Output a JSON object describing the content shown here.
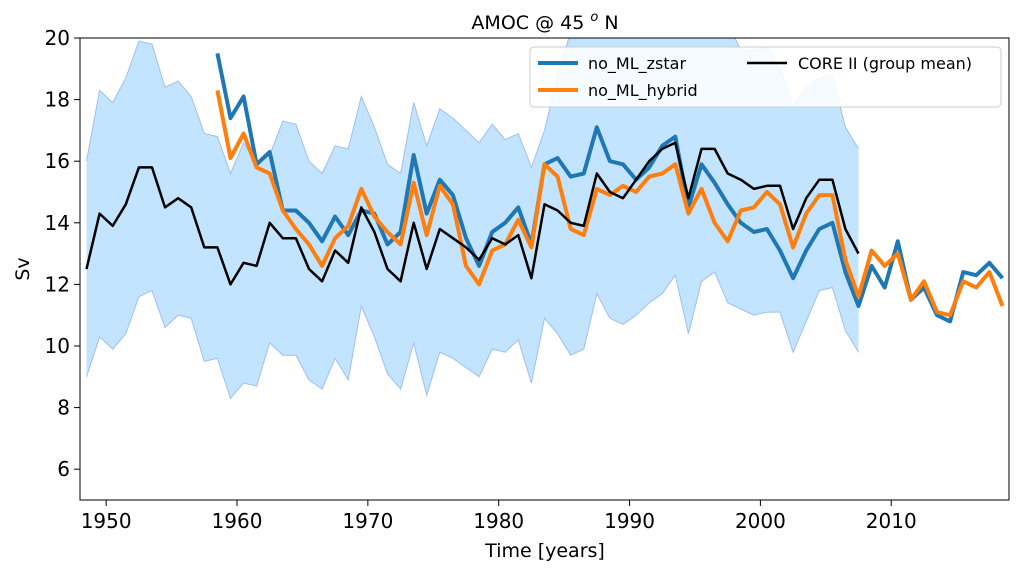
{
  "chart_data": {
    "type": "line",
    "title": "AMOC @ 45 ",
    "title_sup": "o",
    "title_suffix": " N",
    "xlabel": "Time [years]",
    "ylabel": "Sv",
    "xlim": [
      1948,
      2019
    ],
    "ylim": [
      5,
      20
    ],
    "xticks": [
      1950,
      1960,
      1970,
      1980,
      1990,
      2000,
      2010
    ],
    "yticks": [
      6,
      8,
      10,
      12,
      14,
      16,
      18,
      20
    ],
    "grid": false,
    "legend_position": "top-right",
    "band": {
      "color": "#c3e4ff",
      "edge_color": "#9fbfee",
      "x": [
        1948.5,
        1949.5,
        1950.5,
        1951.5,
        1952.5,
        1953.5,
        1954.5,
        1955.5,
        1956.5,
        1957.5,
        1958.5,
        1959.5,
        1960.5,
        1961.5,
        1962.5,
        1963.5,
        1964.5,
        1965.5,
        1966.5,
        1967.5,
        1968.5,
        1969.5,
        1970.5,
        1971.5,
        1972.5,
        1973.5,
        1974.5,
        1975.5,
        1976.5,
        1977.5,
        1978.5,
        1979.5,
        1980.5,
        1981.5,
        1982.5,
        1983.5,
        1984.5,
        1985.5,
        1986.5,
        1987.5,
        1988.5,
        1989.5,
        1990.5,
        1991.5,
        1992.5,
        1993.5,
        1994.5,
        1995.5,
        1996.5,
        1997.5,
        1998.5,
        1999.5,
        2000.5,
        2001.5,
        2002.5,
        2003.5,
        2004.5,
        2005.5,
        2006.5,
        2007.5
      ],
      "upper": [
        16.0,
        18.3,
        17.9,
        18.7,
        19.9,
        19.8,
        18.4,
        18.6,
        18.1,
        16.9,
        16.8,
        15.6,
        16.6,
        15.9,
        16.2,
        17.3,
        17.2,
        16.0,
        15.6,
        16.5,
        16.4,
        18.1,
        17.1,
        15.9,
        15.6,
        17.9,
        16.5,
        17.7,
        17.4,
        17.0,
        16.6,
        17.2,
        16.7,
        16.9,
        15.8,
        17.0,
        18.8,
        20.2,
        20.4,
        20.6,
        20.6,
        20.5,
        20.6,
        20.8,
        20.6,
        20.9,
        20.4,
        20.4,
        20.2,
        20.5,
        19.6,
        19.6,
        19.7,
        19.0,
        17.8,
        18.4,
        18.7,
        18.8,
        17.1,
        16.4
      ],
      "lower": [
        9.0,
        10.3,
        9.9,
        10.4,
        11.6,
        11.8,
        10.6,
        11.0,
        10.9,
        9.5,
        9.6,
        8.3,
        8.8,
        8.7,
        10.1,
        9.7,
        9.7,
        8.9,
        8.6,
        9.6,
        8.9,
        11.3,
        10.3,
        9.1,
        8.6,
        10.1,
        8.4,
        9.8,
        9.6,
        9.3,
        9.0,
        9.9,
        9.8,
        10.2,
        8.8,
        10.9,
        10.4,
        9.7,
        9.9,
        11.7,
        10.9,
        10.7,
        11.0,
        11.4,
        11.7,
        12.3,
        10.4,
        12.1,
        12.4,
        11.4,
        11.2,
        11.0,
        11.1,
        11.1,
        9.8,
        10.8,
        11.8,
        11.9,
        10.5,
        9.8
      ]
    },
    "series": [
      {
        "name": "no_ML_zstar",
        "color": "#1f77b4",
        "x_start": 1958.5,
        "values": [
          19.5,
          17.4,
          18.1,
          15.9,
          16.3,
          14.4,
          14.4,
          14.0,
          13.4,
          14.2,
          13.6,
          14.4,
          14.3,
          13.3,
          13.7,
          16.2,
          14.3,
          15.4,
          14.9,
          13.5,
          12.6,
          13.7,
          14.0,
          14.5,
          13.3,
          15.9,
          16.1,
          15.5,
          15.6,
          17.1,
          16.0,
          15.9,
          15.4,
          15.8,
          16.5,
          16.8,
          14.5,
          15.9,
          15.3,
          14.6,
          14.0,
          13.7,
          13.8,
          13.1,
          12.2,
          13.1,
          13.8,
          14.0,
          12.4,
          11.3,
          12.6,
          11.9,
          13.4,
          11.5,
          11.9,
          11.0,
          10.8,
          12.4,
          12.3,
          12.7,
          12.2
        ]
      },
      {
        "name": "no_ML_hybrid",
        "color": "#ff7f0e",
        "x_start": 1958.5,
        "values": [
          18.3,
          16.1,
          16.9,
          15.8,
          15.6,
          14.4,
          13.8,
          13.3,
          12.6,
          13.5,
          13.9,
          15.1,
          14.2,
          13.7,
          13.3,
          15.3,
          13.6,
          15.2,
          14.6,
          12.6,
          12.0,
          13.1,
          13.3,
          14.1,
          13.2,
          15.9,
          15.5,
          13.8,
          13.6,
          15.1,
          14.9,
          15.2,
          15.0,
          15.5,
          15.6,
          15.9,
          14.3,
          15.1,
          14.0,
          13.4,
          14.4,
          14.5,
          15.0,
          14.6,
          13.2,
          14.3,
          14.9,
          14.9,
          12.8,
          11.6,
          13.1,
          12.6,
          13.0,
          11.5,
          12.1,
          11.1,
          11.0,
          12.1,
          11.9,
          12.4,
          11.3
        ]
      },
      {
        "name": "CORE II (group mean)",
        "color": "#000000",
        "x_start": 1948.5,
        "values": [
          12.5,
          14.3,
          13.9,
          14.6,
          15.8,
          15.8,
          14.5,
          14.8,
          14.5,
          13.2,
          13.2,
          12.0,
          12.7,
          12.6,
          14.0,
          13.5,
          13.5,
          12.5,
          12.1,
          13.1,
          12.7,
          14.5,
          13.7,
          12.5,
          12.1,
          14.0,
          12.5,
          13.8,
          13.5,
          13.2,
          12.8,
          13.5,
          13.3,
          13.6,
          12.2,
          14.6,
          14.4,
          14.0,
          13.9,
          15.6,
          15.0,
          14.8,
          15.4,
          16.0,
          16.4,
          16.6,
          14.8,
          16.4,
          16.4,
          15.6,
          15.4,
          15.1,
          15.2,
          15.2,
          13.8,
          14.8,
          15.4,
          15.4,
          13.8,
          13.0
        ]
      }
    ]
  }
}
